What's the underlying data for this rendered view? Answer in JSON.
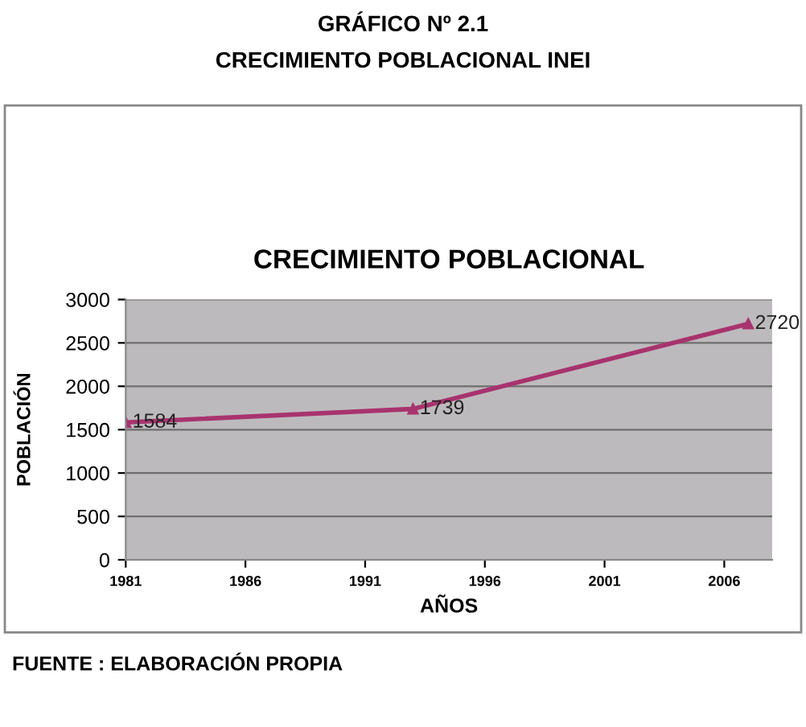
{
  "chart_data": {
    "type": "line",
    "title": "CRECIMIENTO POBLACIONAL",
    "annotations": [
      "GRÁFICO Nº 2.1",
      "CRECIMIENTO POBLACIONAL INEI",
      "FUENTE : ELABORACIÓN PROPIA"
    ],
    "xlabel": "AÑOS",
    "ylabel": "POBLACIÓN",
    "x": [
      1981,
      1993,
      2007
    ],
    "series": [
      {
        "color": "#a8336e",
        "values": [
          1584,
          1739,
          2720
        ]
      }
    ],
    "xlim": [
      1981,
      2008
    ],
    "xticks": [
      1981,
      1986,
      1991,
      1996,
      2001,
      2006
    ],
    "ylim": [
      0,
      3000
    ],
    "yticks": [
      0,
      500,
      1000,
      1500,
      2000,
      2500,
      3000
    ],
    "grid": "y",
    "marker": "triangle",
    "line_style": "solid",
    "data_labels": true,
    "legend": false
  }
}
